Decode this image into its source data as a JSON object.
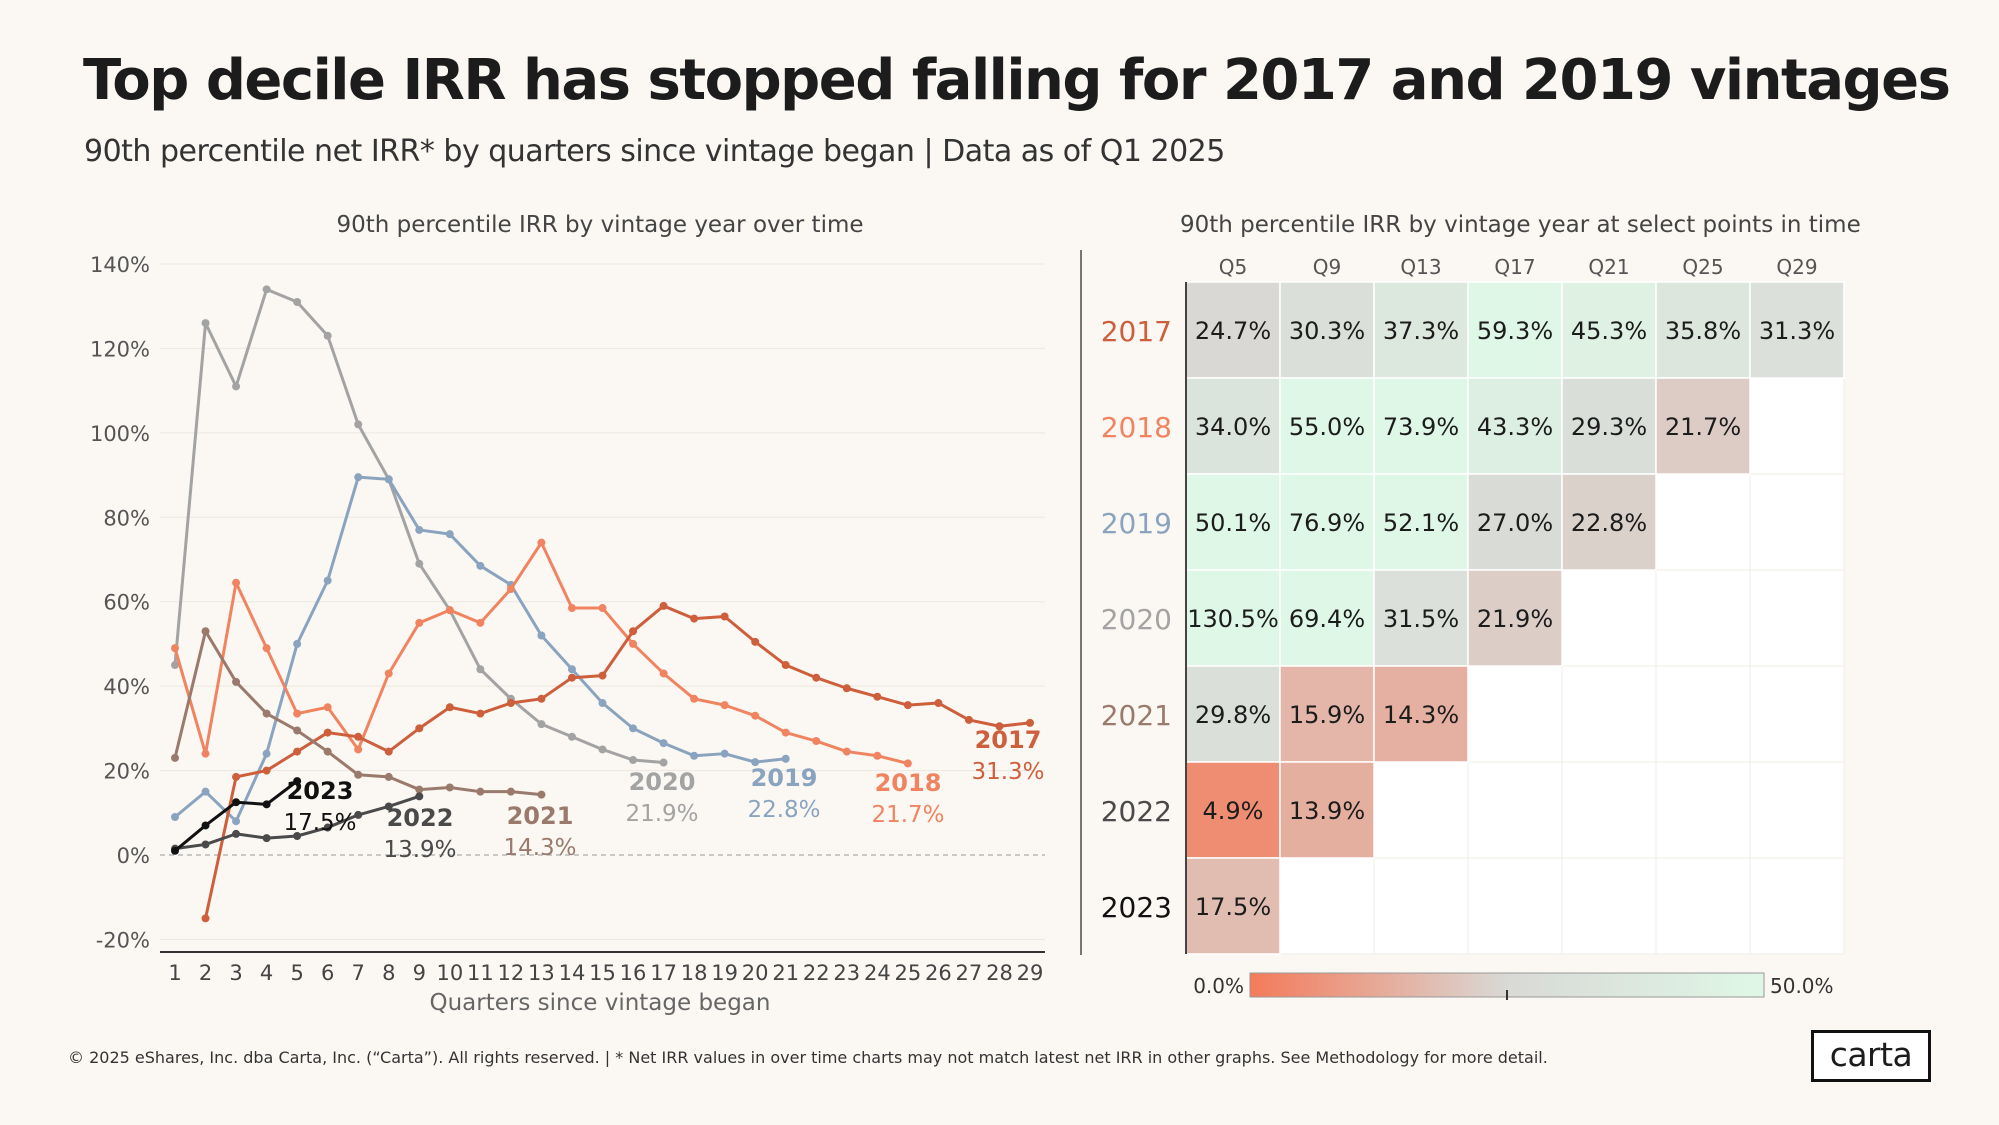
{
  "title": "Top decile IRR has stopped falling for 2017 and 2019 vintages",
  "subtitle": "90th percentile net IRR* by quarters since vintage began | Data as of Q1 2025",
  "footer": "© 2025 eShares, Inc. dba Carta, Inc. (“Carta”). All rights reserved.  |  * Net IRR values in over time charts may not match latest net IRR in other  graphs. See Methodology for more detail.",
  "logo": "carta",
  "chart_data": [
    {
      "type": "line",
      "title": "90th percentile IRR by vintage year over time",
      "xlabel": "Quarters since vintage began",
      "ylabel": "",
      "xlim": [
        1,
        29
      ],
      "ylim": [
        -20,
        140
      ],
      "y_ticks": [
        -20,
        0,
        20,
        40,
        60,
        80,
        100,
        120,
        140
      ],
      "y_tick_labels": [
        "-20%",
        "0%",
        "20%",
        "40%",
        "60%",
        "80%",
        "100%",
        "120%",
        "140%"
      ],
      "x_ticks": [
        1,
        2,
        3,
        4,
        5,
        6,
        7,
        8,
        9,
        10,
        11,
        12,
        13,
        14,
        15,
        16,
        17,
        18,
        19,
        20,
        21,
        22,
        23,
        24,
        25,
        26,
        27,
        28,
        29
      ],
      "grid": true,
      "series": [
        {
          "name": "2020",
          "label_value": "21.9%",
          "color": "#a3a3a3",
          "x": [
            1,
            2,
            3,
            4,
            5,
            6,
            7,
            8,
            9,
            10,
            11,
            12,
            13,
            14,
            15,
            16,
            17
          ],
          "values": [
            45,
            126,
            111,
            134,
            131,
            123,
            102,
            89,
            69,
            58,
            44,
            37,
            31,
            28,
            25,
            22.5,
            21.9
          ]
        },
        {
          "name": "2019",
          "label_value": "22.8%",
          "color": "#8aa4c0",
          "x": [
            1,
            2,
            3,
            4,
            5,
            6,
            7,
            8,
            9,
            10,
            11,
            12,
            13,
            14,
            15,
            16,
            17,
            18,
            19,
            20,
            21
          ],
          "values": [
            9,
            15,
            8,
            24,
            50,
            65,
            89.5,
            89,
            77,
            76,
            68.5,
            64,
            52,
            44,
            36,
            30,
            26.5,
            23.5,
            24,
            22,
            22.8
          ]
        },
        {
          "name": "2018",
          "label_value": "21.7%",
          "color": "#f08461",
          "x": [
            1,
            2,
            3,
            4,
            5,
            6,
            7,
            8,
            9,
            10,
            11,
            12,
            13,
            14,
            15,
            16,
            17,
            18,
            19,
            20,
            21,
            22,
            23,
            24,
            25
          ],
          "values": [
            49,
            24,
            64.5,
            49,
            33.5,
            35,
            25,
            43,
            55,
            58,
            55,
            63,
            74,
            58.5,
            58.5,
            50,
            43,
            37,
            35.5,
            33,
            29,
            27,
            24.5,
            23.5,
            21.7
          ]
        },
        {
          "name": "2017",
          "label_value": "31.3%",
          "color": "#cd5f3c",
          "x": [
            2,
            3,
            4,
            5,
            6,
            7,
            8,
            9,
            10,
            11,
            12,
            13,
            14,
            15,
            16,
            17,
            18,
            19,
            20,
            21,
            22,
            23,
            24,
            25,
            26,
            27,
            28,
            29
          ],
          "values": [
            -15,
            18.5,
            20,
            24.5,
            29,
            28,
            24.5,
            30,
            35,
            33.5,
            36,
            37,
            42,
            42.5,
            53,
            59,
            56,
            56.5,
            50.5,
            45,
            42,
            39.5,
            37.5,
            35.5,
            36,
            32,
            30.5,
            31.3
          ]
        },
        {
          "name": "2021",
          "label_value": "14.3%",
          "color": "#9a7a6c",
          "x": [
            1,
            2,
            3,
            4,
            5,
            6,
            7,
            8,
            9,
            10,
            11,
            12,
            13
          ],
          "values": [
            23,
            53,
            41,
            33.5,
            29.5,
            24.5,
            19,
            18.5,
            15.5,
            16,
            15,
            15,
            14.3
          ]
        },
        {
          "name": "2022",
          "label_value": "13.9%",
          "color": "#4a4a4a",
          "x": [
            1,
            2,
            3,
            4,
            5,
            6,
            7,
            8,
            9
          ],
          "values": [
            1.5,
            2.5,
            5,
            4,
            4.5,
            6.5,
            9.5,
            11.5,
            13.9
          ]
        },
        {
          "name": "2023",
          "label_value": "17.5%",
          "color": "#111111",
          "x": [
            1,
            2,
            3,
            4,
            5
          ],
          "values": [
            1,
            7,
            12.5,
            12,
            17.5
          ]
        }
      ]
    },
    {
      "type": "heatmap",
      "title": "90th percentile IRR by vintage year at select points in time",
      "columns": [
        "Q5",
        "Q9",
        "Q13",
        "Q17",
        "Q21",
        "Q25",
        "Q29"
      ],
      "rows": [
        {
          "label": "2017",
          "color": "#cd5f3c",
          "values": [
            24.7,
            30.3,
            37.3,
            59.3,
            45.3,
            35.8,
            31.3
          ],
          "labels": [
            "24.7%",
            "30.3%",
            "37.3%",
            "59.3%",
            "45.3%",
            "35.8%",
            "31.3%"
          ]
        },
        {
          "label": "2018",
          "color": "#f08461",
          "values": [
            34.0,
            55.0,
            73.9,
            43.3,
            29.3,
            21.7
          ],
          "labels": [
            "34.0%",
            "55.0%",
            "73.9%",
            "43.3%",
            "29.3%",
            "21.7%"
          ]
        },
        {
          "label": "2019",
          "color": "#8aa4c0",
          "values": [
            50.1,
            76.9,
            52.1,
            27.0,
            22.8
          ],
          "labels": [
            "50.1%",
            "76.9%",
            "52.1%",
            "27.0%",
            "22.8%"
          ]
        },
        {
          "label": "2020",
          "color": "#a3a3a3",
          "values": [
            130.5,
            69.4,
            31.5,
            21.9
          ],
          "labels": [
            "130.5%",
            "69.4%",
            "31.5%",
            "21.9%"
          ]
        },
        {
          "label": "2021",
          "color": "#9a7a6c",
          "values": [
            29.8,
            15.9,
            14.3
          ],
          "labels": [
            "29.8%",
            "15.9%",
            "14.3%"
          ]
        },
        {
          "label": "2022",
          "color": "#4a4a4a",
          "values": [
            4.9,
            13.9
          ],
          "labels": [
            "4.9%",
            "13.9%"
          ]
        },
        {
          "label": "2023",
          "color": "#111111",
          "values": [
            17.5
          ],
          "labels": [
            "17.5%"
          ]
        }
      ],
      "color_scale": {
        "min": 0,
        "max": 50,
        "min_label": "0.0%",
        "max_label": "50.0%",
        "min_color": "#f47a5a",
        "mid_color": "#d9d9d6",
        "max_color": "#dff7e6"
      }
    }
  ]
}
